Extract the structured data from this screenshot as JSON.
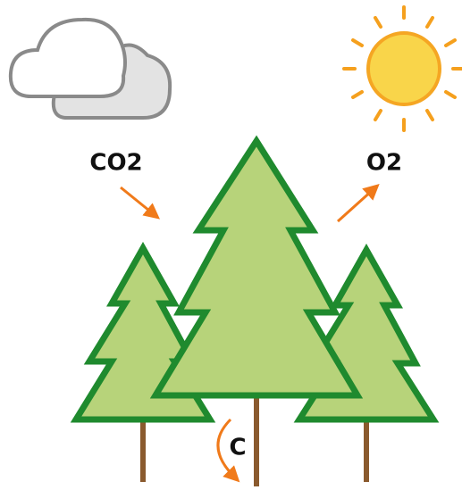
{
  "labels": {
    "co2": "CO2",
    "o2": "O2",
    "c": "C"
  }
}
